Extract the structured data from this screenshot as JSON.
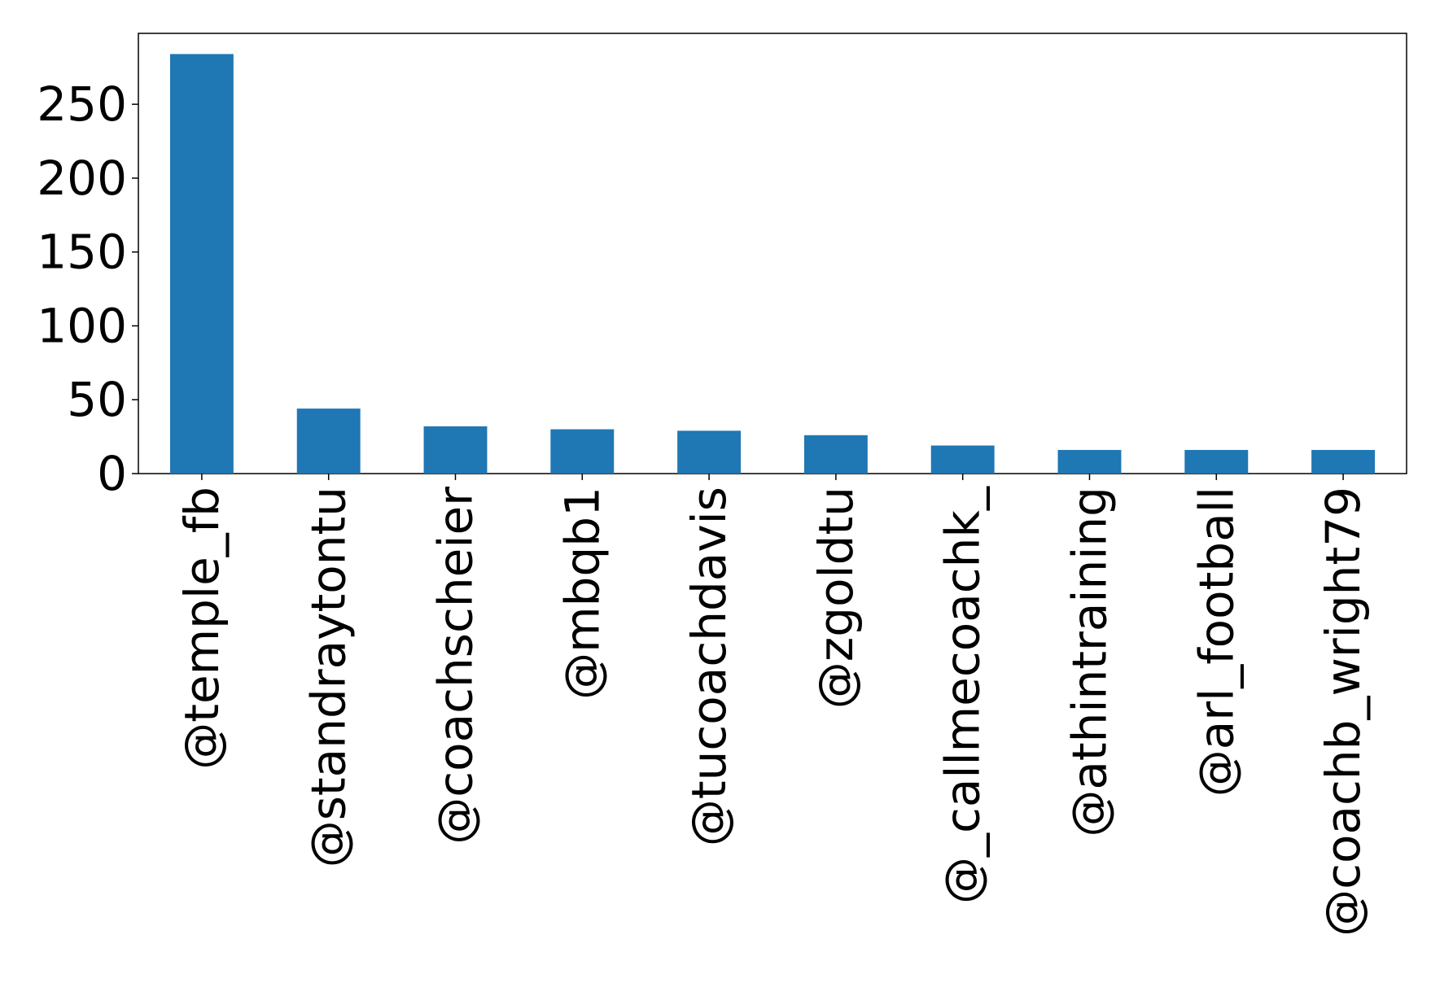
{
  "chart_data": {
    "type": "bar",
    "categories": [
      "@temple_fb",
      "@standraytontu",
      "@coachscheier",
      "@mbqb1",
      "@tucoachdavis",
      "@zgoldtu",
      "@_callmecoachk_",
      "@athintraining",
      "@arl_football",
      "@coachb_wright79"
    ],
    "values": [
      284,
      44,
      32,
      30,
      29,
      26,
      19,
      16,
      16,
      16
    ],
    "color": "#1f77b4",
    "ylim": [
      0,
      298
    ],
    "yticks": [
      0,
      50,
      100,
      150,
      200,
      250
    ],
    "grid": false
  }
}
